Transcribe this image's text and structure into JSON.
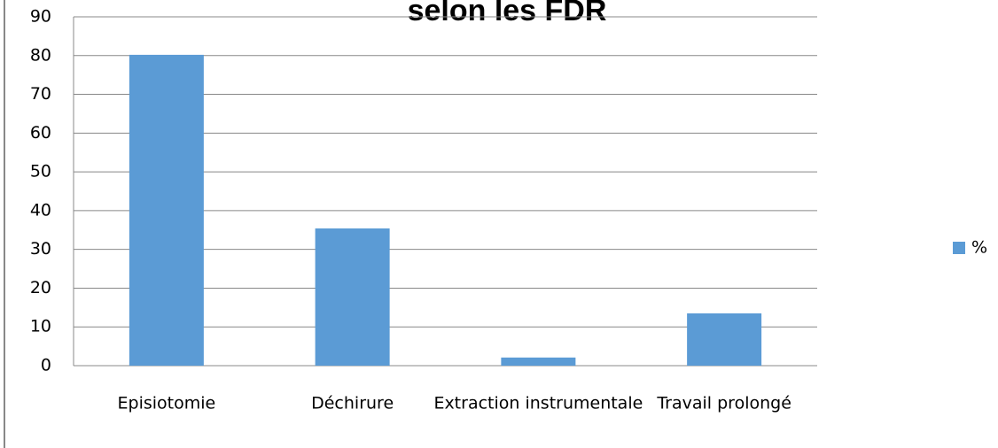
{
  "chart_data": {
    "type": "bar",
    "title": "selon les FDR",
    "categories": [
      "Episiotomie",
      "Déchirure",
      "Extraction instrumentale",
      "Travail prolongé"
    ],
    "series": [
      {
        "name": "%",
        "color": "#5b9bd5",
        "values": [
          80.2,
          35.4,
          2.1,
          13.5
        ]
      }
    ],
    "ylim": [
      0,
      90
    ],
    "yticks": [
      0,
      10,
      20,
      30,
      40,
      50,
      60,
      70,
      80,
      90
    ],
    "grid": true,
    "legend": "right"
  }
}
